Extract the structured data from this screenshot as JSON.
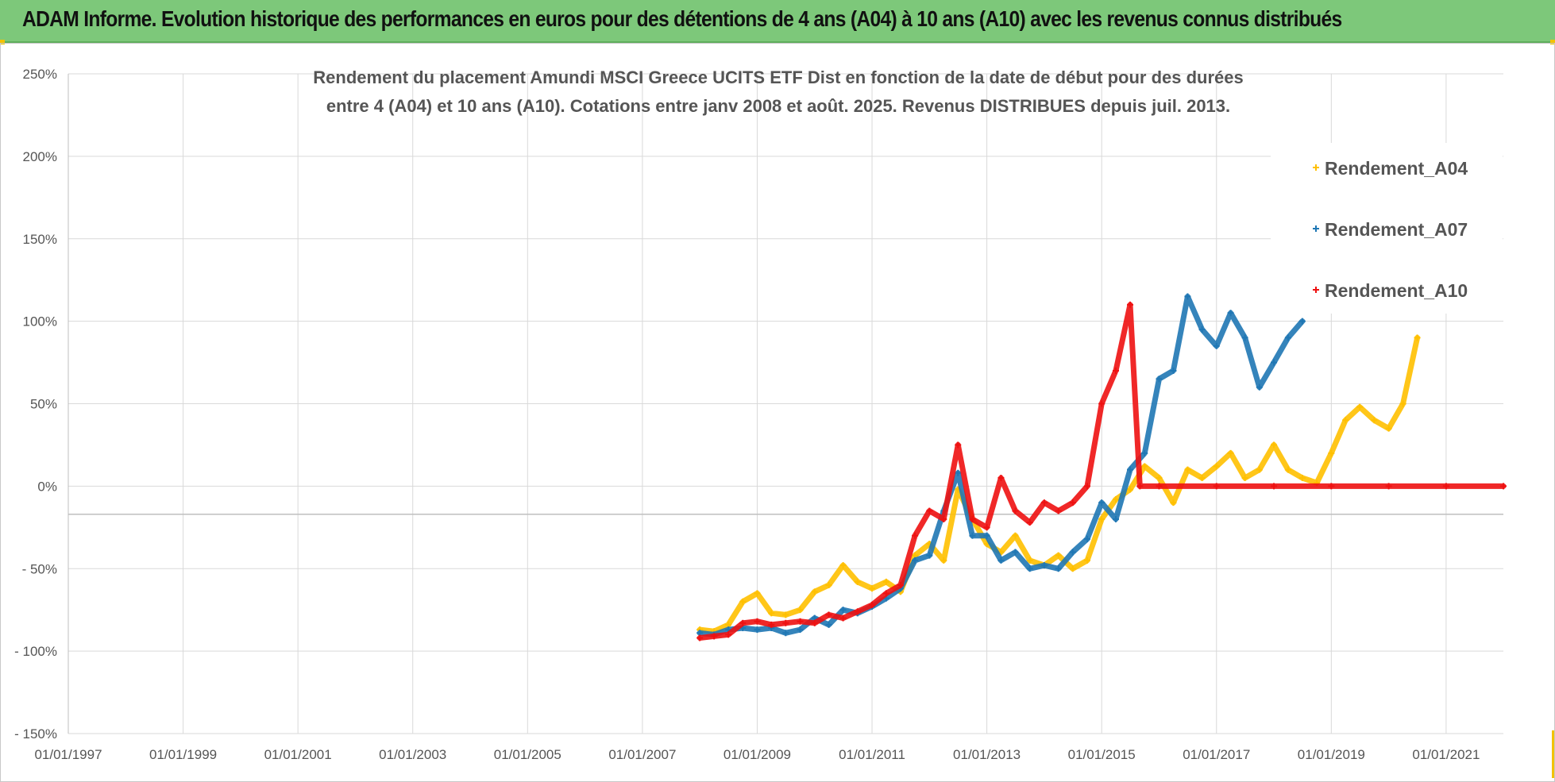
{
  "banner": {
    "title": "ADAM Informe. Evolution historique des performances en euros pour des détentions de 4 ans (A04) à 10 ans (A10) avec les revenus connus distribués"
  },
  "colors": {
    "banner_bg": "#7dc87a",
    "A04": "#ffc000",
    "A07": "#1f77b4",
    "A10": "#ee1111",
    "grid": "#d9d9d9"
  },
  "chart_data": {
    "type": "scatter",
    "title_lines": [
      "Rendement du placement Amundi MSCI Greece UCITS ETF Dist en fonction de la date de début pour des durées",
      "entre 4 (A04) et 10 ans (A10).  Cotations entre janv 2008 et août. 2025. Revenus DISTRIBUES depuis juil. 2013."
    ],
    "x_axis": {
      "type": "date",
      "range": [
        "1997-01-01",
        "2021-12-31"
      ],
      "tick_labels": [
        "01/01/1997",
        "01/01/1999",
        "01/01/2001",
        "01/01/2003",
        "01/01/2005",
        "01/01/2007",
        "01/01/2009",
        "01/01/2011",
        "01/01/2013",
        "01/01/2015",
        "01/01/2017",
        "01/01/2019",
        "01/01/2021"
      ],
      "tick_years": [
        1997,
        1999,
        2001,
        2003,
        2005,
        2007,
        2009,
        2011,
        2013,
        2015,
        2017,
        2019,
        2021
      ]
    },
    "y_axis": {
      "range": [
        -150,
        250
      ],
      "unit": "%",
      "ticks": [
        -150,
        -100,
        -50,
        0,
        50,
        100,
        150,
        200,
        250
      ],
      "tick_labels": [
        "- 150%",
        "- 100%",
        "- 50%",
        "0%",
        "50%",
        "100%",
        "150%",
        "200%",
        "250%"
      ]
    },
    "grid": true,
    "legend_position": "top-right",
    "series": [
      {
        "name": "Rendement_A04",
        "color": "#ffc000",
        "points": [
          [
            "2008-01-01",
            -87
          ],
          [
            "2008-04-01",
            -88
          ],
          [
            "2008-07-01",
            -84
          ],
          [
            "2008-10-01",
            -70
          ],
          [
            "2009-01-01",
            -65
          ],
          [
            "2009-04-01",
            -77
          ],
          [
            "2009-07-01",
            -78
          ],
          [
            "2009-10-01",
            -75
          ],
          [
            "2010-01-01",
            -64
          ],
          [
            "2010-04-01",
            -60
          ],
          [
            "2010-07-01",
            -48
          ],
          [
            "2010-10-01",
            -58
          ],
          [
            "2011-01-01",
            -62
          ],
          [
            "2011-04-01",
            -58
          ],
          [
            "2011-07-01",
            -64
          ],
          [
            "2011-10-01",
            -42
          ],
          [
            "2012-01-01",
            -35
          ],
          [
            "2012-04-01",
            -45
          ],
          [
            "2012-07-01",
            -2
          ],
          [
            "2012-10-01",
            -20
          ],
          [
            "2013-01-01",
            -35
          ],
          [
            "2013-04-01",
            -40
          ],
          [
            "2013-07-01",
            -30
          ],
          [
            "2013-10-01",
            -45
          ],
          [
            "2014-01-01",
            -48
          ],
          [
            "2014-04-01",
            -42
          ],
          [
            "2014-07-01",
            -50
          ],
          [
            "2014-10-01",
            -45
          ],
          [
            "2015-01-01",
            -20
          ],
          [
            "2015-04-01",
            -8
          ],
          [
            "2015-07-01",
            -2
          ],
          [
            "2015-10-01",
            12
          ],
          [
            "2016-01-01",
            5
          ],
          [
            "2016-04-01",
            -10
          ],
          [
            "2016-07-01",
            10
          ],
          [
            "2016-10-01",
            5
          ],
          [
            "2017-01-01",
            12
          ],
          [
            "2017-04-01",
            20
          ],
          [
            "2017-07-01",
            5
          ],
          [
            "2017-10-01",
            10
          ],
          [
            "2018-01-01",
            25
          ],
          [
            "2018-04-01",
            10
          ],
          [
            "2018-07-01",
            5
          ],
          [
            "2018-10-01",
            2
          ],
          [
            "2019-01-01",
            20
          ],
          [
            "2019-04-01",
            40
          ],
          [
            "2019-07-01",
            48
          ],
          [
            "2019-10-01",
            40
          ],
          [
            "2020-01-01",
            35
          ],
          [
            "2020-04-01",
            50
          ],
          [
            "2020-07-01",
            90
          ]
        ]
      },
      {
        "name": "Rendement_A07",
        "color": "#1f77b4",
        "points": [
          [
            "2008-01-01",
            -89
          ],
          [
            "2008-04-01",
            -90
          ],
          [
            "2008-07-01",
            -87
          ],
          [
            "2008-10-01",
            -86
          ],
          [
            "2009-01-01",
            -87
          ],
          [
            "2009-04-01",
            -86
          ],
          [
            "2009-07-01",
            -89
          ],
          [
            "2009-10-01",
            -87
          ],
          [
            "2010-01-01",
            -80
          ],
          [
            "2010-04-01",
            -84
          ],
          [
            "2010-07-01",
            -75
          ],
          [
            "2010-10-01",
            -77
          ],
          [
            "2011-01-01",
            -73
          ],
          [
            "2011-04-01",
            -68
          ],
          [
            "2011-07-01",
            -62
          ],
          [
            "2011-10-01",
            -45
          ],
          [
            "2012-01-01",
            -42
          ],
          [
            "2012-04-01",
            -15
          ],
          [
            "2012-07-01",
            8
          ],
          [
            "2012-10-01",
            -30
          ],
          [
            "2013-01-01",
            -30
          ],
          [
            "2013-04-01",
            -45
          ],
          [
            "2013-07-01",
            -40
          ],
          [
            "2013-10-01",
            -50
          ],
          [
            "2014-01-01",
            -48
          ],
          [
            "2014-04-01",
            -50
          ],
          [
            "2014-07-01",
            -40
          ],
          [
            "2014-10-01",
            -32
          ],
          [
            "2015-01-01",
            -10
          ],
          [
            "2015-04-01",
            -20
          ],
          [
            "2015-07-01",
            10
          ],
          [
            "2015-10-01",
            20
          ],
          [
            "2016-01-01",
            65
          ],
          [
            "2016-04-01",
            70
          ],
          [
            "2016-07-01",
            115
          ],
          [
            "2016-10-01",
            95
          ],
          [
            "2017-01-01",
            85
          ],
          [
            "2017-04-01",
            105
          ],
          [
            "2017-07-01",
            90
          ],
          [
            "2017-10-01",
            60
          ],
          [
            "2018-01-01",
            75
          ],
          [
            "2018-04-01",
            90
          ],
          [
            "2018-07-01",
            100
          ]
        ]
      },
      {
        "name": "Rendement_A10",
        "color": "#ee1111",
        "points": [
          [
            "2008-01-01",
            -92
          ],
          [
            "2008-04-01",
            -91
          ],
          [
            "2008-07-01",
            -90
          ],
          [
            "2008-10-01",
            -83
          ],
          [
            "2009-01-01",
            -82
          ],
          [
            "2009-04-01",
            -84
          ],
          [
            "2009-07-01",
            -83
          ],
          [
            "2009-10-01",
            -82
          ],
          [
            "2010-01-01",
            -83
          ],
          [
            "2010-04-01",
            -78
          ],
          [
            "2010-07-01",
            -80
          ],
          [
            "2010-10-01",
            -76
          ],
          [
            "2011-01-01",
            -72
          ],
          [
            "2011-04-01",
            -65
          ],
          [
            "2011-07-01",
            -60
          ],
          [
            "2011-10-01",
            -30
          ],
          [
            "2012-01-01",
            -15
          ],
          [
            "2012-04-01",
            -20
          ],
          [
            "2012-07-01",
            25
          ],
          [
            "2012-10-01",
            -20
          ],
          [
            "2013-01-01",
            -25
          ],
          [
            "2013-04-01",
            5
          ],
          [
            "2013-07-01",
            -15
          ],
          [
            "2013-10-01",
            -22
          ],
          [
            "2014-01-01",
            -10
          ],
          [
            "2014-04-01",
            -15
          ],
          [
            "2014-07-01",
            -10
          ],
          [
            "2014-10-01",
            0
          ],
          [
            "2015-01-01",
            50
          ],
          [
            "2015-04-01",
            70
          ],
          [
            "2015-07-01",
            110
          ],
          [
            "2015-09-01",
            0
          ],
          [
            "2016-01-01",
            0
          ],
          [
            "2017-01-01",
            0
          ],
          [
            "2018-01-01",
            0
          ],
          [
            "2019-01-01",
            0
          ],
          [
            "2020-01-01",
            0
          ],
          [
            "2021-01-01",
            0
          ],
          [
            "2021-12-31",
            0
          ]
        ]
      }
    ]
  }
}
